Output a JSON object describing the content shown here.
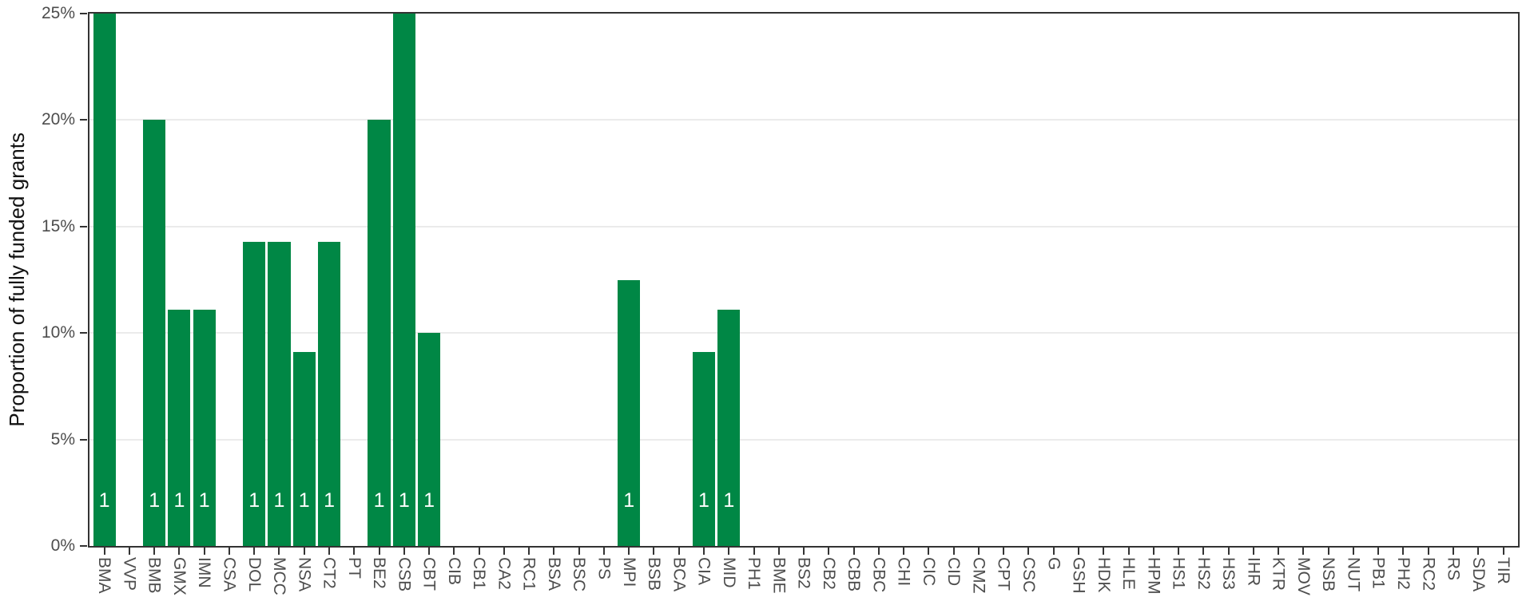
{
  "chart_data": {
    "type": "bar",
    "title": "",
    "ylabel": "Proportion of fully funded grants",
    "ylim": [
      0,
      25
    ],
    "yticks": [
      0,
      5,
      10,
      15,
      20,
      25
    ],
    "ytick_labels": [
      "0%",
      "5%",
      "10%",
      "15%",
      "20%",
      "25%"
    ],
    "grid_y": [
      5,
      10,
      15,
      20
    ],
    "grid": "major-y-only",
    "legend": "none",
    "bar_color": "#008745",
    "bar_label_color": "#ffffff",
    "categories": [
      "BMA",
      "VVP",
      "BMB",
      "GMX",
      "IMN",
      "CSA",
      "DOL",
      "MCC",
      "NSA",
      "CT2",
      "PT",
      "BE2",
      "CSB",
      "CBT",
      "CIB",
      "CB1",
      "CA2",
      "RC1",
      "BSA",
      "BSC",
      "PS",
      "MPI",
      "BSB",
      "BCA",
      "CIA",
      "MID",
      "PH1",
      "BME",
      "BS2",
      "CB2",
      "CBB",
      "CBC",
      "CHI",
      "CIC",
      "CID",
      "CMZ",
      "CPT",
      "CSC",
      "G",
      "GSH",
      "HDK",
      "HLE",
      "HPM",
      "HS1",
      "HS2",
      "HS3",
      "IHR",
      "KTR",
      "MOV",
      "NSB",
      "NUT",
      "PB1",
      "PH2",
      "RC2",
      "RS",
      "SDA",
      "TIR"
    ],
    "values": [
      25,
      0,
      20,
      11.11,
      11.11,
      0,
      14.29,
      14.29,
      9.09,
      14.29,
      0,
      20,
      25,
      10,
      0,
      0,
      0,
      0,
      0,
      0,
      0,
      12.5,
      0,
      0,
      9.09,
      11.11,
      0,
      0,
      0,
      0,
      0,
      0,
      0,
      0,
      0,
      0,
      0,
      0,
      0,
      0,
      0,
      0,
      0,
      0,
      0,
      0,
      0,
      0,
      0,
      0,
      0,
      0,
      0,
      0,
      0,
      0,
      0
    ],
    "bar_labels": [
      "1",
      "",
      "1",
      "1",
      "1",
      "",
      "1",
      "1",
      "1",
      "1",
      "",
      "1",
      "1",
      "1",
      "",
      "",
      "",
      "",
      "",
      "",
      "",
      "1",
      "",
      "",
      "1",
      "1",
      "",
      "",
      "",
      "",
      "",
      "",
      "",
      "",
      "",
      "",
      "",
      "",
      "",
      "",
      "",
      "",
      "",
      "",
      "",
      "",
      "",
      "",
      "",
      "",
      "",
      "",
      "",
      "",
      "",
      "",
      ""
    ]
  },
  "colors": {
    "bar": "#008745",
    "grid": "#ebebeb",
    "panel_border": "#333333",
    "axis_text": "#4d4d4d",
    "axis_title": "#111111",
    "bar_label": "#ffffff"
  }
}
